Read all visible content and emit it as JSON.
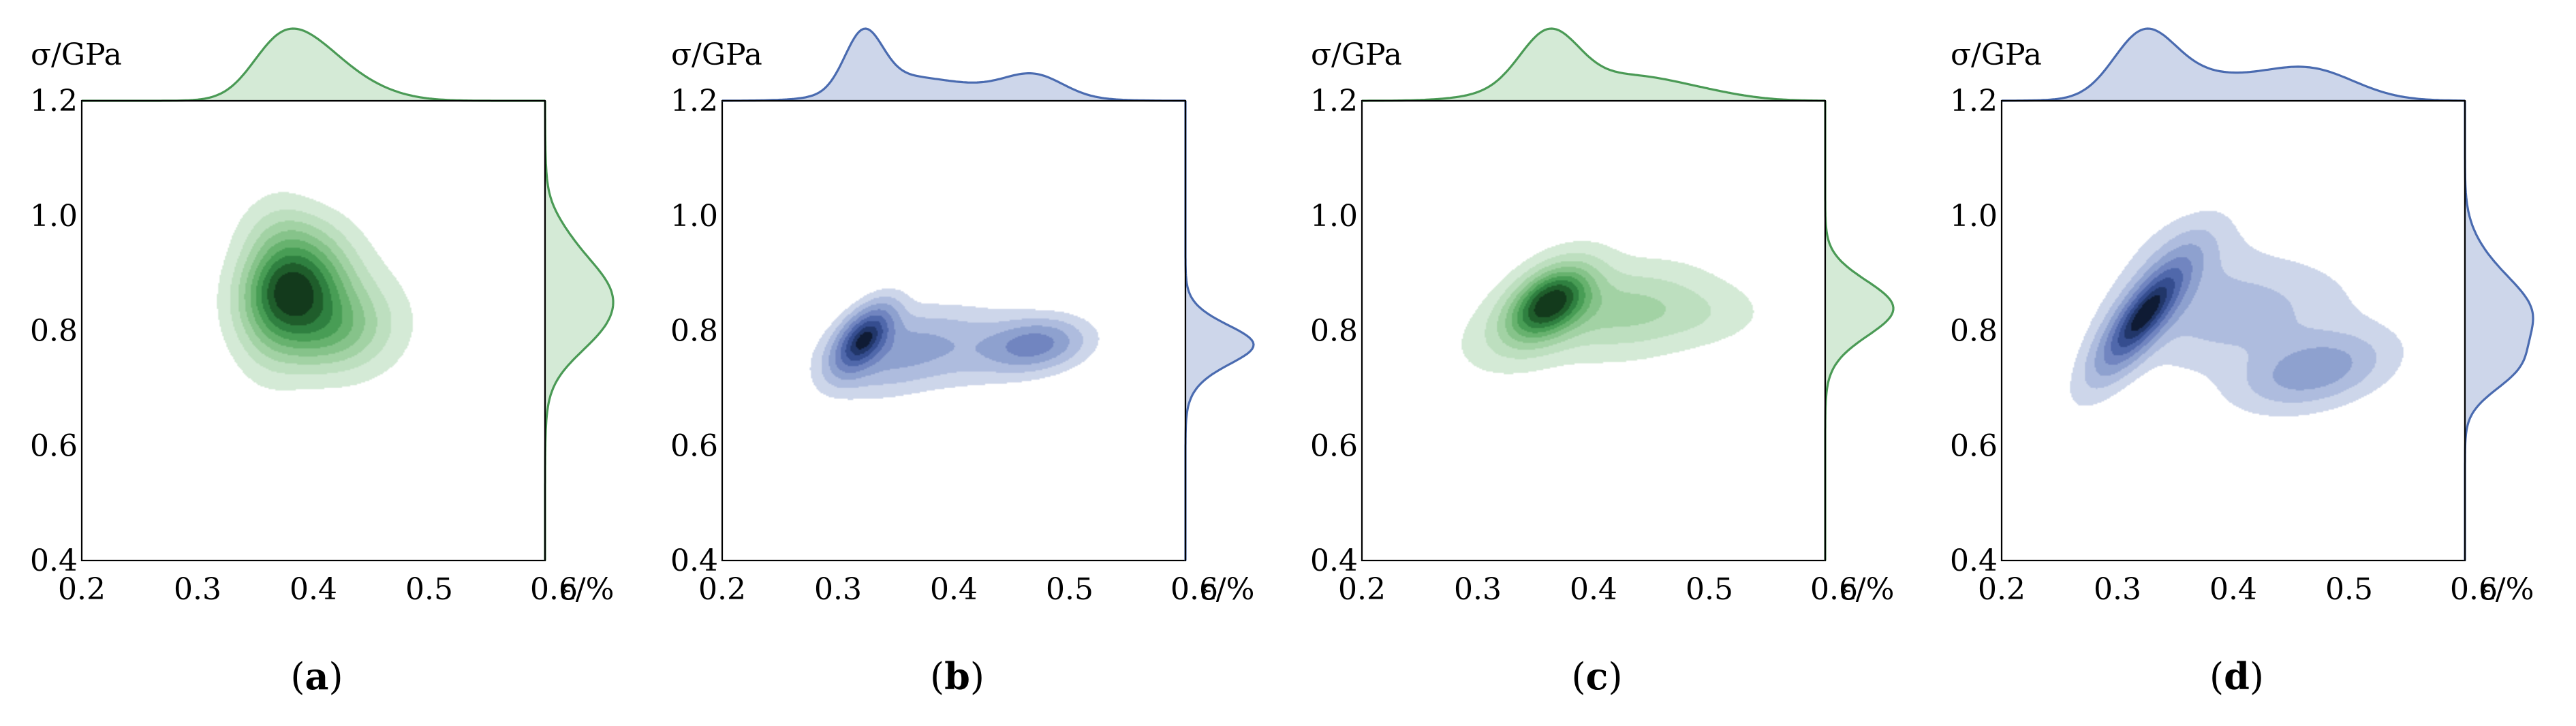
{
  "figure": {
    "panel_count": 4
  },
  "chart_data": [
    {
      "type": "kde-joint",
      "caption": "(a)",
      "caption_letter": "a",
      "xlabel": "ε/%",
      "ylabel": "σ/GPa",
      "xlim": [
        0.2,
        0.6
      ],
      "ylim": [
        0.4,
        1.2
      ],
      "xticks": [
        "0.2",
        "0.3",
        "0.4",
        "0.5",
        "0.6"
      ],
      "yticks": [
        "0.4",
        "0.6",
        "0.8",
        "1.0",
        "1.2"
      ],
      "color_scheme": "green",
      "line_color": "#4a9a55",
      "fill_color": "#d4ead6",
      "contour_colors": [
        "#d4ead6",
        "#bddfbf",
        "#a2d2a4",
        "#86c38a",
        "#67b26e",
        "#489d55",
        "#2f8040",
        "#1f5d2b",
        "#133a1c"
      ],
      "contour_levels": [
        0.08,
        0.18,
        0.28,
        0.38,
        0.48,
        0.58,
        0.68,
        0.78,
        0.88
      ],
      "kde_components": [
        {
          "x": 0.385,
          "y": 0.88,
          "sx": 0.03,
          "sy": 0.055,
          "rho": 0.15,
          "w": 1.0
        },
        {
          "x": 0.405,
          "y": 0.8,
          "sx": 0.035,
          "sy": 0.05,
          "rho": 0.05,
          "w": 0.55
        },
        {
          "x": 0.365,
          "y": 0.87,
          "sx": 0.022,
          "sy": 0.1,
          "rho": 0.1,
          "w": 0.3
        },
        {
          "x": 0.435,
          "y": 0.82,
          "sx": 0.035,
          "sy": 0.07,
          "rho": 0.0,
          "w": 0.22
        },
        {
          "x": 0.385,
          "y": 0.97,
          "sx": 0.03,
          "sy": 0.04,
          "rho": 0.0,
          "w": 0.18
        }
      ]
    },
    {
      "type": "kde-joint",
      "caption": "(b)",
      "caption_letter": "b",
      "xlabel": "ε/%",
      "ylabel": "σ/GPa",
      "xlim": [
        0.2,
        0.6
      ],
      "ylim": [
        0.4,
        1.2
      ],
      "xticks": [
        "0.2",
        "0.3",
        "0.4",
        "0.5",
        "0.6"
      ],
      "yticks": [
        "0.4",
        "0.6",
        "0.8",
        "1.0",
        "1.2"
      ],
      "color_scheme": "blue",
      "line_color": "#4a6bb0",
      "fill_color": "#cdd6ea",
      "contour_colors": [
        "#cdd6ea",
        "#aebcde",
        "#8ea1cf",
        "#7185c0",
        "#5068ab",
        "#354d8f",
        "#213669",
        "#0f1b34"
      ],
      "contour_levels": [
        0.05,
        0.12,
        0.22,
        0.35,
        0.5,
        0.65,
        0.8,
        0.92
      ],
      "kde_components": [
        {
          "x": 0.322,
          "y": 0.785,
          "sx": 0.016,
          "sy": 0.036,
          "rho": 0.55,
          "w": 1.0
        },
        {
          "x": 0.47,
          "y": 0.775,
          "sx": 0.025,
          "sy": 0.026,
          "rho": 0.2,
          "w": 0.42
        },
        {
          "x": 0.4,
          "y": 0.77,
          "sx": 0.06,
          "sy": 0.042,
          "rho": 0.1,
          "w": 0.2
        },
        {
          "x": 0.345,
          "y": 0.755,
          "sx": 0.035,
          "sy": 0.045,
          "rho": 0.4,
          "w": 0.18
        }
      ]
    },
    {
      "type": "kde-joint",
      "caption": "(c)",
      "caption_letter": "c",
      "xlabel": "ε/%",
      "ylabel": "σ/GPa",
      "xlim": [
        0.2,
        0.6
      ],
      "ylim": [
        0.4,
        1.2
      ],
      "xticks": [
        "0.2",
        "0.3",
        "0.4",
        "0.5",
        "0.6"
      ],
      "yticks": [
        "0.4",
        "0.6",
        "0.8",
        "1.0",
        "1.2"
      ],
      "color_scheme": "green",
      "line_color": "#4a9a55",
      "fill_color": "#d4ead6",
      "contour_colors": [
        "#d4ead6",
        "#bddfbf",
        "#a2d2a4",
        "#86c38a",
        "#67b26e",
        "#489d55",
        "#2f8040",
        "#1f5d2b",
        "#133a1c"
      ],
      "contour_levels": [
        0.06,
        0.16,
        0.27,
        0.38,
        0.48,
        0.58,
        0.68,
        0.78,
        0.88
      ],
      "kde_components": [
        {
          "x": 0.362,
          "y": 0.85,
          "sx": 0.025,
          "sy": 0.045,
          "rho": 0.45,
          "w": 1.0
        },
        {
          "x": 0.43,
          "y": 0.835,
          "sx": 0.045,
          "sy": 0.05,
          "rho": 0.2,
          "w": 0.35
        },
        {
          "x": 0.5,
          "y": 0.825,
          "sx": 0.035,
          "sy": 0.035,
          "rho": 0.1,
          "w": 0.1
        },
        {
          "x": 0.34,
          "y": 0.8,
          "sx": 0.04,
          "sy": 0.05,
          "rho": 0.4,
          "w": 0.15
        }
      ]
    },
    {
      "type": "kde-joint",
      "caption": "(d)",
      "caption_letter": "d",
      "xlabel": "ε/%",
      "ylabel": "σ/GPa",
      "xlim": [
        0.2,
        0.6
      ],
      "ylim": [
        0.4,
        1.2
      ],
      "xticks": [
        "0.2",
        "0.3",
        "0.4",
        "0.5",
        "0.6"
      ],
      "yticks": [
        "0.4",
        "0.6",
        "0.8",
        "1.0",
        "1.2"
      ],
      "color_scheme": "blue",
      "line_color": "#4a6bb0",
      "fill_color": "#cdd6ea",
      "contour_colors": [
        "#cdd6ea",
        "#aebcde",
        "#8ea1cf",
        "#7185c0",
        "#5068ab",
        "#354d8f",
        "#213669",
        "#0f1b34"
      ],
      "contour_levels": [
        0.05,
        0.14,
        0.26,
        0.4,
        0.54,
        0.68,
        0.8,
        0.9
      ],
      "kde_components": [
        {
          "x": 0.322,
          "y": 0.825,
          "sx": 0.026,
          "sy": 0.065,
          "rho": 0.8,
          "w": 1.0
        },
        {
          "x": 0.47,
          "y": 0.73,
          "sx": 0.038,
          "sy": 0.04,
          "rho": 0.35,
          "w": 0.4
        },
        {
          "x": 0.4,
          "y": 0.83,
          "sx": 0.06,
          "sy": 0.06,
          "rho": 0.1,
          "w": 0.22
        },
        {
          "x": 0.36,
          "y": 0.93,
          "sx": 0.03,
          "sy": 0.05,
          "rho": 0.3,
          "w": 0.12
        }
      ]
    }
  ]
}
